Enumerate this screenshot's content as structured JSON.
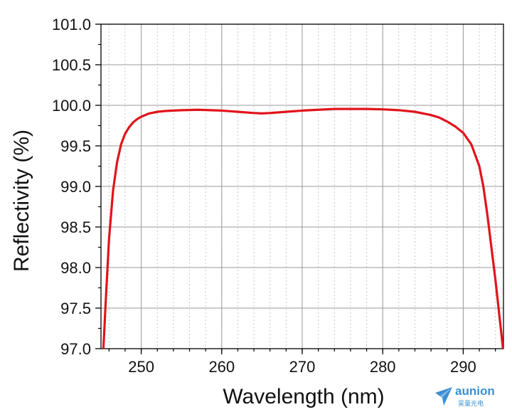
{
  "chart_data": {
    "type": "line",
    "title": "",
    "xlabel": "Wavelength (nm)",
    "ylabel": "Reflectivity (%)",
    "xlim": [
      245,
      295
    ],
    "ylim": [
      97.0,
      101.0
    ],
    "x_ticks": [
      250,
      260,
      270,
      280,
      290
    ],
    "y_ticks": [
      97.0,
      97.5,
      98.0,
      98.5,
      99.0,
      99.5,
      100.0,
      100.5,
      101.0
    ],
    "x_tick_labels": [
      "250",
      "260",
      "270",
      "280",
      "290"
    ],
    "y_tick_labels": [
      "97.0",
      "97.5",
      "98.0",
      "98.5",
      "99.0",
      "99.5",
      "100.0",
      "100.5",
      "101.0"
    ],
    "grid": true,
    "minor_grid": true,
    "legend": "none",
    "series": [
      {
        "color": "#e0141b",
        "x": [
          245.3,
          245.6,
          246.0,
          246.5,
          247.0,
          247.5,
          248.0,
          248.5,
          249.0,
          249.5,
          250.0,
          251.0,
          252.0,
          253.0,
          254.0,
          255.0,
          257.0,
          260.0,
          262.0,
          264.0,
          265.0,
          266.0,
          268.0,
          270.0,
          272.0,
          274.0,
          276.0,
          278.0,
          280.0,
          282.0,
          284.0,
          286.0,
          287.0,
          288.0,
          289.0,
          290.0,
          291.0,
          292.0,
          292.5,
          293.0,
          293.5,
          294.0,
          294.5,
          295.0
        ],
        "y": [
          97.0,
          97.6,
          98.35,
          98.95,
          99.3,
          99.52,
          99.65,
          99.73,
          99.79,
          99.83,
          99.86,
          99.9,
          99.92,
          99.93,
          99.935,
          99.94,
          99.945,
          99.935,
          99.92,
          99.905,
          99.9,
          99.905,
          99.92,
          99.935,
          99.945,
          99.955,
          99.955,
          99.955,
          99.95,
          99.94,
          99.92,
          99.88,
          99.85,
          99.8,
          99.74,
          99.66,
          99.52,
          99.25,
          99.0,
          98.65,
          98.25,
          97.85,
          97.4,
          96.95
        ]
      }
    ]
  },
  "logo": {
    "name": "aunion",
    "subtitle": "吴量光电",
    "color": "#3a8fd1"
  }
}
